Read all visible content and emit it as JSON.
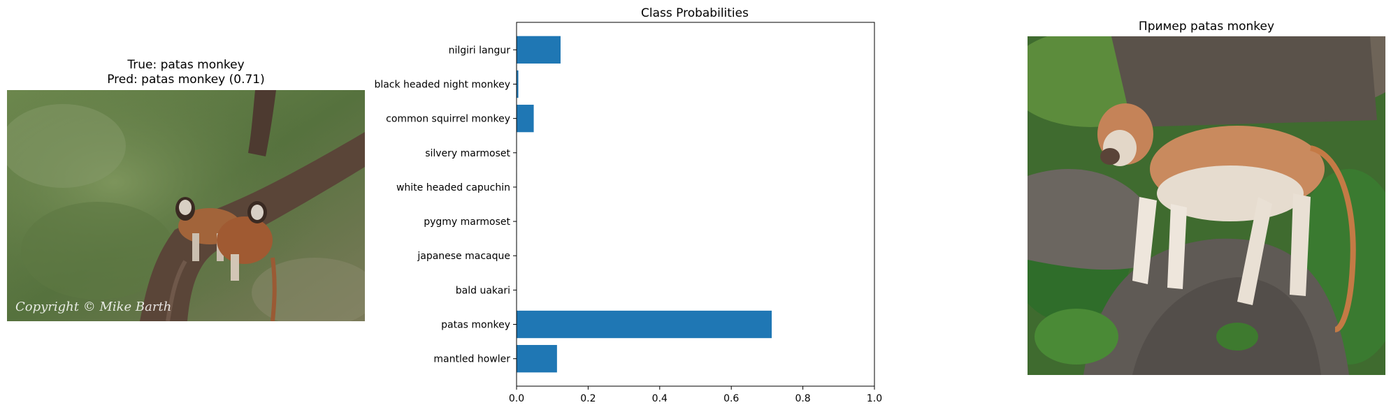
{
  "left_panel": {
    "title_line1": "True: patas monkey",
    "title_line2": "Pred: patas monkey (0.71)",
    "watermark": "Copyright © Mike Barth"
  },
  "right_panel": {
    "title": "Пример patas monkey"
  },
  "chart_data": {
    "type": "bar",
    "orientation": "horizontal",
    "title": "Class Probabilities",
    "xlabel": "",
    "ylabel": "",
    "categories": [
      "mantled howler",
      "patas monkey",
      "bald uakari",
      "japanese macaque",
      "pygmy marmoset",
      "white headed capuchin",
      "silvery marmoset",
      "common squirrel monkey",
      "black headed night monkey",
      "nilgiri langur"
    ],
    "values": [
      0.113,
      0.713,
      0.001,
      0.001,
      0.001,
      0.001,
      0.001,
      0.048,
      0.005,
      0.123
    ],
    "xlim": [
      0,
      1.0
    ],
    "xticks": [
      "0.0",
      "0.2",
      "0.4",
      "0.6",
      "0.8",
      "1.0"
    ],
    "xtick_values": [
      0,
      0.2,
      0.4,
      0.6,
      0.8,
      1.0
    ],
    "bar_color": "#1f77b4",
    "grid": false
  }
}
